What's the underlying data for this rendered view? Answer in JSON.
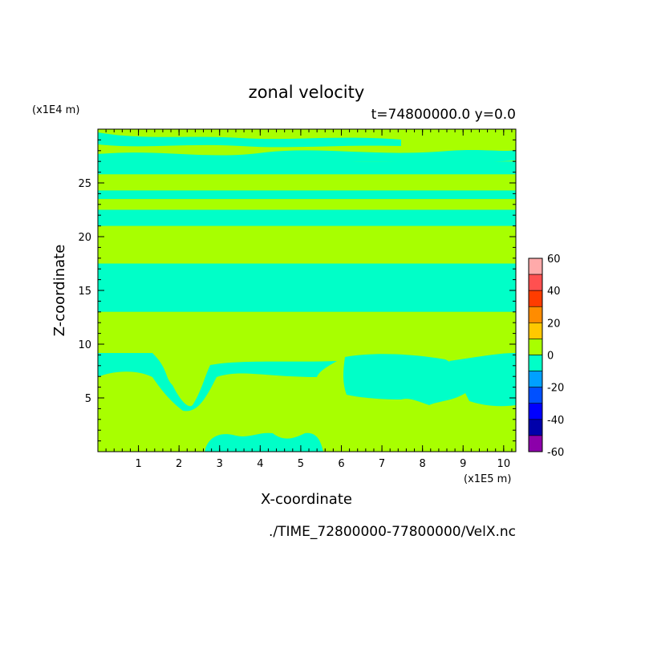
{
  "chart_data": {
    "type": "heatmap",
    "title": "zonal velocity",
    "subtitle": "t=74800000.0 y=0.0",
    "xlabel": "X-coordinate",
    "ylabel": "Z-coordinate",
    "x_units": "(x1E5 m)",
    "y_units": "(x1E4 m)",
    "footer": "./TIME_72800000-77800000/VelX.nc",
    "xlim": [
      0,
      10.3
    ],
    "ylim": [
      0,
      30
    ],
    "x_ticks": [
      "1",
      "2",
      "3",
      "4",
      "5",
      "6",
      "7",
      "8",
      "9",
      "10"
    ],
    "y_ticks": [
      "5",
      "10",
      "15",
      "20",
      "25"
    ],
    "colorbar": {
      "ticks": [
        "60",
        "40",
        "20",
        "0",
        "-20",
        "-40",
        "-60"
      ],
      "levels": [
        {
          "range": [
            50,
            60
          ],
          "color": "#ffaaaa"
        },
        {
          "range": [
            40,
            50
          ],
          "color": "#ff5050"
        },
        {
          "range": [
            30,
            40
          ],
          "color": "#ff3c00"
        },
        {
          "range": [
            20,
            30
          ],
          "color": "#ff8c00"
        },
        {
          "range": [
            10,
            20
          ],
          "color": "#ffc800"
        },
        {
          "range": [
            0,
            10
          ],
          "color": "#a8ff00"
        },
        {
          "range": [
            -10,
            0
          ],
          "color": "#00ffc8"
        },
        {
          "range": [
            -20,
            -10
          ],
          "color": "#00a0ff"
        },
        {
          "range": [
            -30,
            -20
          ],
          "color": "#0050ff"
        },
        {
          "range": [
            -40,
            -30
          ],
          "color": "#0000ff"
        },
        {
          "range": [
            -50,
            -40
          ],
          "color": "#0000aa"
        },
        {
          "range": [
            -60,
            -50
          ],
          "color": "#8c00aa"
        }
      ]
    },
    "colors": {
      "positive_fill": "#a8ff00",
      "negative_fill": "#00ffc8"
    },
    "bands": [
      {
        "z_range": [
          13,
          17.5
        ],
        "sign": "negative"
      },
      {
        "z_range": [
          9.8,
          13
        ],
        "sign": "positive"
      },
      {
        "z_range": [
          21,
          22.5
        ],
        "sign": "negative"
      },
      {
        "z_range": [
          23.5,
          24.3
        ],
        "sign": "negative"
      },
      {
        "z_range": [
          25.8,
          27
        ],
        "sign": "negative"
      }
    ]
  }
}
